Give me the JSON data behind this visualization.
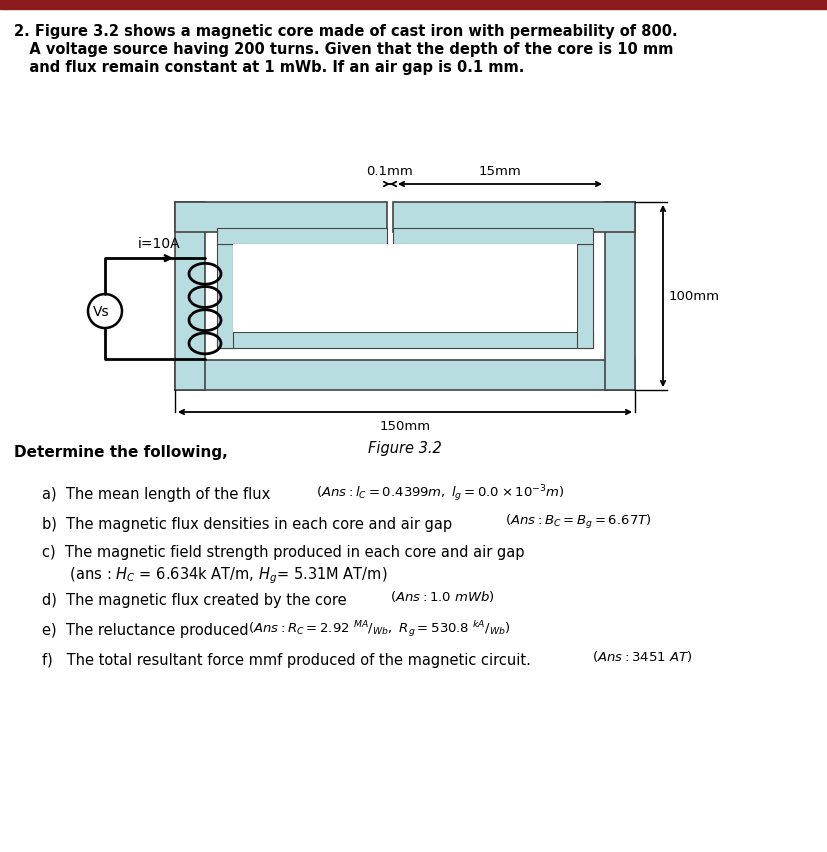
{
  "bg_color": "#ffffff",
  "core_color": "#b8dde0",
  "core_border_color": "#444444",
  "text_color": "#000000",
  "title_line1": "2. Figure 3.2 shows a magnetic core made of cast iron with permeability of 800.",
  "title_line2": "   A voltage source having 200 turns. Given that the depth of the core is 10 mm",
  "title_line3": "   and flux remain constant at 1 mWb. If an air gap is 0.1 mm.",
  "figure_label": "Figure 3.2",
  "determine_text": "Determine the following,",
  "dim_0p1mm": "0.1mm",
  "dim_15mm": "15mm",
  "dim_100mm": "100mm",
  "dim_150mm": "150mm",
  "label_i": "i=10A",
  "label_vs": "Vs",
  "top_bar_color": "#8b1a1a"
}
